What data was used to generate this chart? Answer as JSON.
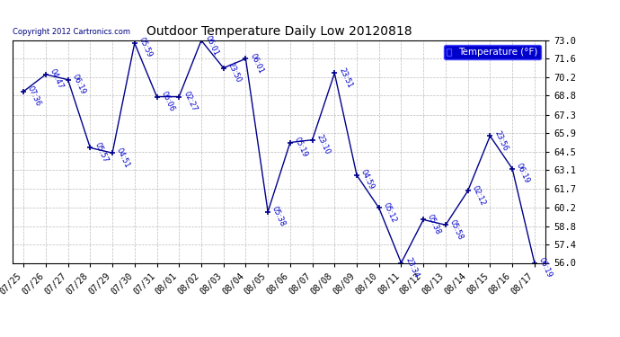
{
  "title": "Outdoor Temperature Daily Low 20120818",
  "copyright": "Copyright 2012 Cartronics.com",
  "legend_label": "Temperature (°F)",
  "dates": [
    "07/25",
    "07/26",
    "07/27",
    "07/28",
    "07/29",
    "07/30",
    "07/31",
    "08/01",
    "08/02",
    "08/03",
    "08/04",
    "08/05",
    "08/06",
    "08/07",
    "08/08",
    "08/09",
    "08/10",
    "08/11",
    "08/12",
    "08/13",
    "08/14",
    "08/15",
    "08/16",
    "08/17"
  ],
  "temperatures": [
    69.1,
    70.4,
    70.0,
    64.8,
    64.4,
    72.8,
    68.7,
    68.7,
    73.0,
    70.9,
    71.6,
    59.9,
    65.2,
    65.4,
    70.5,
    62.7,
    60.2,
    56.0,
    59.3,
    58.9,
    61.5,
    65.7,
    63.2,
    56.0
  ],
  "time_labels": [
    "07:36",
    "04:47",
    "06:19",
    "05:57",
    "04:51",
    "05:59",
    "06:06",
    "02:27",
    "06:01",
    "23:50",
    "06:01",
    "05:38",
    "05:19",
    "23:10",
    "23:51",
    "04:59",
    "05:12",
    "23:34",
    "05:38",
    "05:58",
    "02:12",
    "23:56",
    "06:19",
    "06:19"
  ],
  "ylim": [
    56.0,
    73.0
  ],
  "yticks": [
    56.0,
    57.4,
    58.8,
    60.2,
    61.7,
    63.1,
    64.5,
    65.9,
    67.3,
    68.8,
    70.2,
    71.6,
    73.0
  ],
  "line_color": "#00008B",
  "marker_color": "#00008B",
  "bg_color": "#ffffff",
  "grid_color": "#bbbbbb",
  "label_color": "#0000CD",
  "title_color": "#000000",
  "legend_bg": "#0000CD",
  "legend_fg": "#ffffff",
  "figwidth": 6.9,
  "figheight": 3.75,
  "dpi": 100
}
